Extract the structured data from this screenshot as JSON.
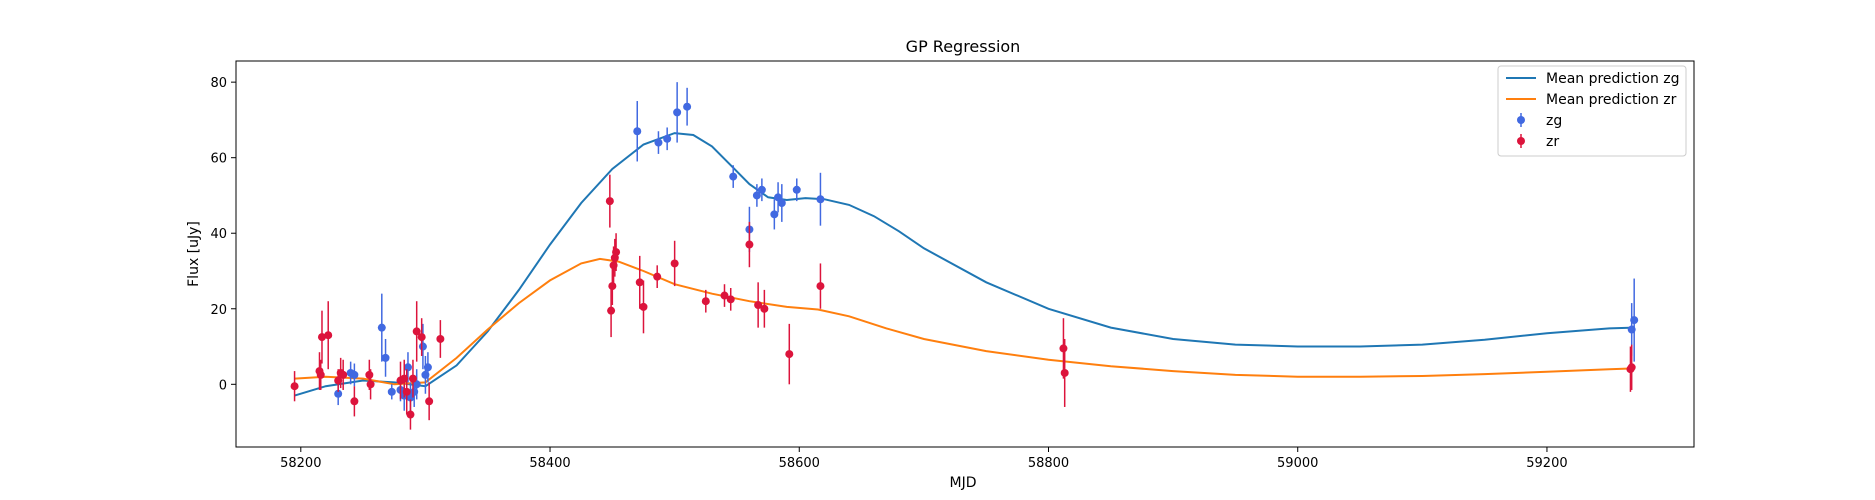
{
  "chart_data": {
    "type": "scatter",
    "title": "GP Regression",
    "xlabel": "MJD",
    "ylabel": "Flux [uJy]",
    "xlim": [
      58148,
      59318
    ],
    "ylim": [
      -16.6,
      85.6
    ],
    "xticks": [
      58200,
      58400,
      58600,
      58800,
      59000,
      59200
    ],
    "yticks": [
      0,
      20,
      40,
      60,
      80
    ],
    "grid": false,
    "legend_position": "top-right",
    "lines": [
      {
        "name": "Mean prediction zg",
        "color": "#1f77b4",
        "x": [
          58195,
          58220,
          58250,
          58275,
          58300,
          58325,
          58350,
          58375,
          58400,
          58425,
          58450,
          58475,
          58500,
          58515,
          58530,
          58545,
          58560,
          58575,
          58590,
          58605,
          58620,
          58640,
          58660,
          58680,
          58700,
          58750,
          58800,
          58850,
          58900,
          58950,
          59000,
          59050,
          59100,
          59150,
          59200,
          59250,
          59270
        ],
        "y": [
          -3,
          -0.5,
          1,
          0.5,
          -0.5,
          5,
          14,
          25,
          37,
          48,
          57,
          63.5,
          66.5,
          66,
          63,
          58,
          53,
          49.5,
          48.8,
          49.3,
          49,
          47.5,
          44.5,
          40.5,
          36,
          27,
          20,
          15,
          12,
          10.5,
          10,
          10,
          10.5,
          11.8,
          13.5,
          14.8,
          15
        ]
      },
      {
        "name": "Mean prediction zr",
        "color": "#ff7f0e",
        "x": [
          58195,
          58220,
          58250,
          58275,
          58300,
          58325,
          58350,
          58375,
          58400,
          58425,
          58440,
          58455,
          58475,
          58500,
          58530,
          58560,
          58590,
          58615,
          58640,
          58670,
          58700,
          58750,
          58800,
          58850,
          58900,
          58950,
          59000,
          59050,
          59100,
          59150,
          59200,
          59250,
          59270
        ],
        "y": [
          1.5,
          2,
          1.5,
          0,
          0.5,
          7,
          14.5,
          21.5,
          27.5,
          32,
          33.2,
          32.5,
          30,
          26.5,
          24,
          22,
          20.5,
          19.8,
          18,
          14.8,
          12,
          8.8,
          6.5,
          4.8,
          3.5,
          2.5,
          2,
          2,
          2.2,
          2.7,
          3.3,
          4,
          4.2
        ]
      }
    ],
    "series": [
      {
        "name": "zg",
        "color": "#4169e1",
        "x": [
          58230,
          58240,
          58243,
          58265,
          58268,
          58273,
          58280,
          58283,
          58286,
          58288,
          58291,
          58293,
          58298,
          58300,
          58302,
          58470,
          58487,
          58494,
          58502,
          58510,
          58547,
          58560,
          58566,
          58570,
          58580,
          58583,
          58586,
          58598,
          58617,
          59268,
          59270
        ],
        "y": [
          -2.5,
          3,
          2.5,
          15,
          7,
          -2,
          -1.5,
          -3,
          4.5,
          -3.5,
          -2,
          0,
          10,
          2.5,
          4.5,
          67,
          64,
          65,
          72,
          73.5,
          55,
          41,
          50,
          51.5,
          45,
          49.5,
          48,
          51.5,
          49,
          14.5,
          17
        ],
        "yerr": [
          3,
          3,
          3,
          9,
          5,
          2,
          3,
          4,
          4,
          4,
          4,
          4,
          6,
          5,
          4,
          8,
          3,
          3,
          8,
          5,
          3,
          6,
          3,
          3,
          4,
          4,
          5,
          3,
          7,
          7,
          11
        ]
      },
      {
        "name": "zr",
        "color": "#dc143c",
        "x": [
          58195,
          58215,
          58216,
          58217,
          58222,
          58230,
          58232,
          58234,
          58243,
          58255,
          58256,
          58280,
          58283,
          58285,
          58288,
          58290,
          58293,
          58297,
          58303,
          58312,
          58448,
          58449,
          58450,
          58451,
          58452,
          58453,
          58472,
          58475,
          58486,
          58500,
          58525,
          58540,
          58545,
          58560,
          58567,
          58572,
          58592,
          58617,
          58812,
          58813,
          59267,
          59268
        ],
        "y": [
          -0.5,
          3.5,
          2.5,
          12.5,
          13,
          1,
          3,
          2.5,
          -4.5,
          2.5,
          0,
          1,
          1.5,
          -2,
          -8,
          1.5,
          14,
          12.5,
          -4.5,
          12,
          48.5,
          19.5,
          26,
          31.5,
          33.5,
          35,
          27,
          20.5,
          28.5,
          32,
          22,
          23.5,
          22.5,
          37,
          21,
          20,
          8,
          26,
          9.5,
          3,
          4,
          4.5
        ],
        "yerr": [
          4,
          5,
          4,
          7,
          9,
          3,
          4,
          4,
          4,
          4,
          4,
          5,
          5,
          6,
          4,
          5,
          8,
          5,
          5,
          5,
          7,
          7,
          5,
          5,
          5,
          5,
          7,
          7,
          3,
          6,
          3,
          3,
          3,
          6,
          6,
          5,
          8,
          6,
          8,
          9,
          6,
          6
        ]
      }
    ]
  }
}
